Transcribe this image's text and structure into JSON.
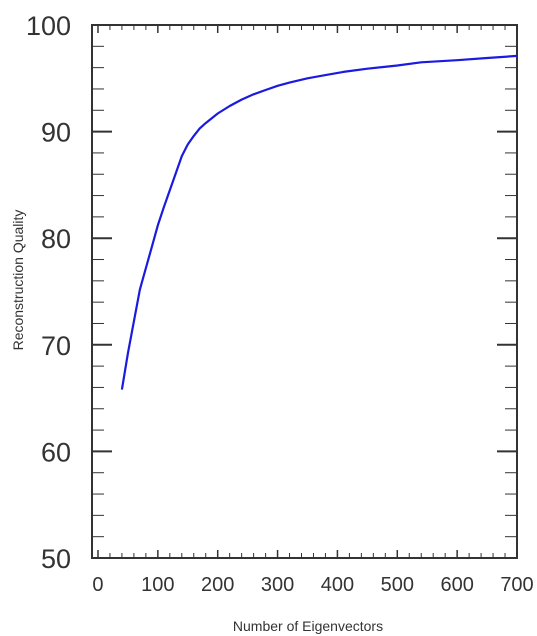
{
  "chart_data": {
    "type": "line",
    "title": "",
    "xlabel": "Number of Eigenvectors",
    "ylabel": "Reconstruction Quality",
    "xlim": [
      -10,
      700
    ],
    "ylim": [
      50,
      100
    ],
    "xticks": [
      "0",
      "100",
      "200",
      "300",
      "400",
      "500",
      "600",
      "700"
    ],
    "yticks": [
      "50",
      "60",
      "70",
      "80",
      "90",
      "100"
    ],
    "grid": false,
    "legend": "none",
    "series": [
      {
        "color": "#1a1ae0",
        "x": [
          40,
          50,
          60,
          70,
          80,
          90,
          100,
          110,
          120,
          130,
          140,
          150,
          160,
          170,
          180,
          200,
          220,
          240,
          260,
          280,
          300,
          320,
          350,
          380,
          410,
          450,
          500,
          540,
          600,
          650,
          700
        ],
        "y": [
          65.8,
          69.2,
          72.2,
          75.2,
          77.2,
          79.2,
          81.2,
          82.9,
          84.5,
          86.1,
          87.7,
          88.8,
          89.6,
          90.3,
          90.8,
          91.7,
          92.4,
          93.0,
          93.5,
          93.9,
          94.3,
          94.6,
          95.0,
          95.3,
          95.6,
          95.9,
          96.2,
          96.5,
          96.7,
          96.9,
          97.1
        ]
      }
    ]
  }
}
